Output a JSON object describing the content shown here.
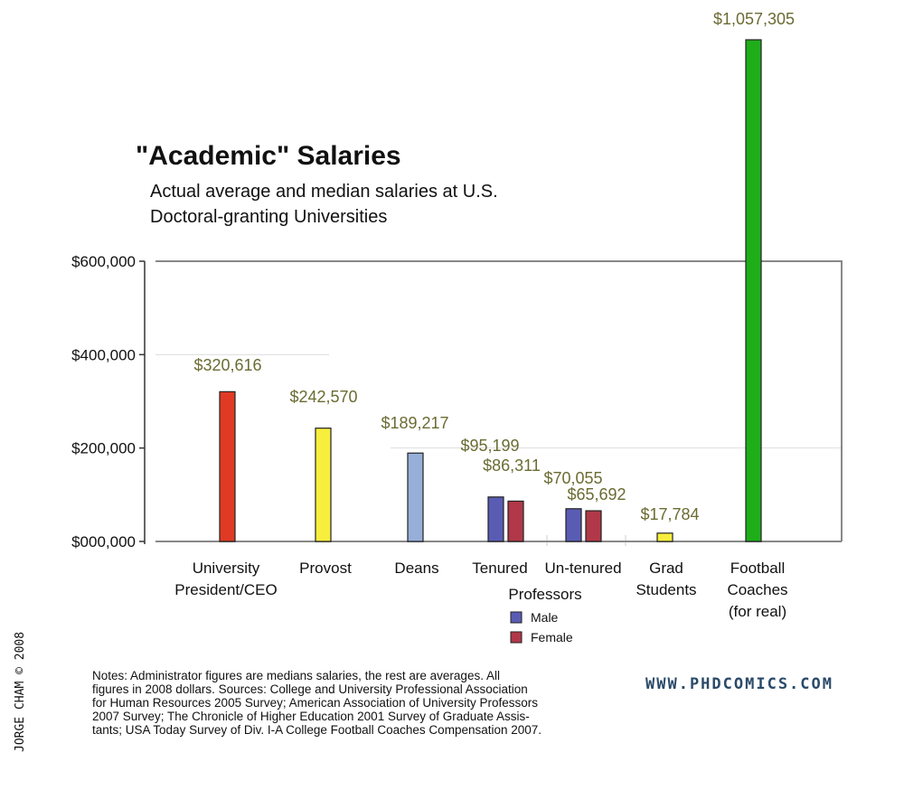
{
  "colors": {
    "value_label": "#6b6b33",
    "red": "#e03a24",
    "yellow": "#f7ee3d",
    "lightblue": "#97afd8",
    "male": "#5a5cb4",
    "female": "#b03848",
    "green": "#1fae1a",
    "frame": "#888888",
    "site": "#2a4a6a"
  },
  "chart_data": {
    "type": "bar",
    "title": "\"Academic\" Salaries",
    "subtitle": [
      "Actual average and median salaries at U.S.",
      "Doctoral-granting Universities"
    ],
    "ylim": [
      0,
      600000
    ],
    "yticks": [
      {
        "value": 0,
        "label": "$000,000"
      },
      {
        "value": 200000,
        "label": "$200,000"
      },
      {
        "value": 400000,
        "label": "$400,000"
      },
      {
        "value": 600000,
        "label": "$600,000"
      }
    ],
    "categories": [
      {
        "label": [
          "University",
          "President/CEO"
        ],
        "bars": [
          {
            "value": 320616,
            "label": "$320,616",
            "color": "#e03a24"
          }
        ]
      },
      {
        "label": [
          "Provost"
        ],
        "bars": [
          {
            "value": 242570,
            "label": "$242,570",
            "color": "#f7ee3d"
          }
        ]
      },
      {
        "label": [
          "Deans"
        ],
        "bars": [
          {
            "value": 189217,
            "label": "$189,217",
            "color": "#97afd8"
          }
        ]
      },
      {
        "label": [
          "Tenured",
          "Professors"
        ],
        "bars": [
          {
            "value": 95199,
            "label": "$95,199",
            "color": "#5a5cb4"
          },
          {
            "value": 86311,
            "label": "$86,311",
            "color": "#b03848"
          }
        ]
      },
      {
        "label": [
          "Un-tenured"
        ],
        "bars": [
          {
            "value": 70055,
            "label": "$70,055",
            "color": "#5a5cb4"
          },
          {
            "value": 65692,
            "label": "$65,692",
            "color": "#b03848"
          }
        ]
      },
      {
        "label": [
          "Grad",
          "Students"
        ],
        "bars": [
          {
            "value": 17784,
            "label": "$17,784",
            "color": "#f7ee3d"
          }
        ]
      },
      {
        "label": [
          "Football",
          "Coaches",
          "(for real)"
        ],
        "bars": [
          {
            "value": 1057305,
            "label": "$1,057,305",
            "color": "#1fae1a"
          }
        ]
      }
    ],
    "legend": [
      {
        "label": "Male",
        "color": "#5a5cb4"
      },
      {
        "label": "Female",
        "color": "#b03848"
      }
    ]
  },
  "notes": [
    "Notes: Administrator figures are medians salaries, the rest are averages. All",
    "figures in 2008 dollars. Sources: College and University Professional Association",
    "for Human Resources 2005 Survey; American Association of University Professors",
    "2007 Survey; The Chronicle of Higher Education 2001 Survey of Graduate Assis-",
    "tants; USA Today Survey of Div. I-A College Football Coaches Compensation 2007."
  ],
  "site": "WWW.PHDCOMICS.COM",
  "credit": "JORGE CHAM © 2008"
}
